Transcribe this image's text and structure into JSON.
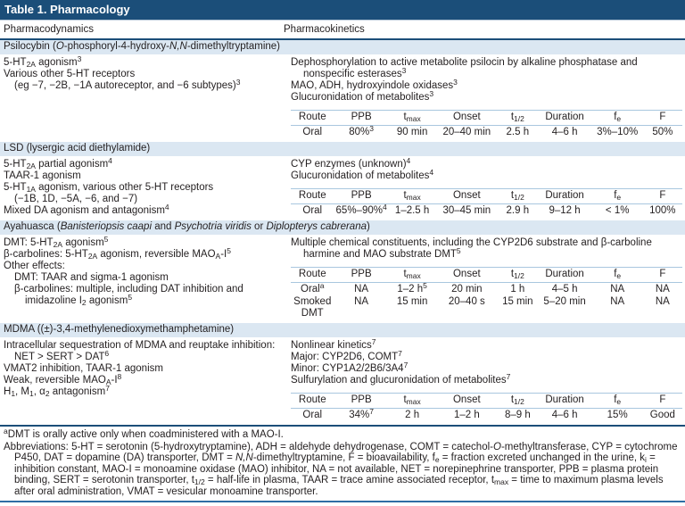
{
  "title": "Table 1. Pharmacology",
  "columns": {
    "left": "Pharmacodynamics",
    "right": "Pharmacokinetics"
  },
  "accent_colors": {
    "header_bar": "#1B4E79",
    "section_band": "#DBE7F2",
    "table_rule": "#A9C7DF",
    "bottom_rule": "#2E6DA4"
  },
  "pk_table_headers": [
    "Route",
    "PPB",
    "t<sub>max</sub>",
    "Onset",
    "t<sub>1/2</sub>",
    "Duration",
    "f<sub>e</sub>",
    "F"
  ],
  "sections": [
    {
      "id": "psilocybin",
      "band": "Psilocybin (<i>O</i>-phosphoryl-4-hydroxy-<i>N,N</i>-dimethyltryptamine)",
      "pd_lines": [
        {
          "text": "5-HT<sub>2A</sub> agonism<sup>3</sup>",
          "indent": 0
        },
        {
          "text": "Various other 5-HT receptors",
          "indent": 0
        },
        {
          "text": "(eg −7, −2B, −1A autoreceptor, and −6 subtypes)<sup>3</sup>",
          "indent": 1
        }
      ],
      "pk_lines": [
        {
          "text": "Dephosphorylation to active metabolite psilocin by alkaline phosphatase and nonspecific esterases<sup>3</sup>",
          "hang": true
        },
        {
          "text": "MAO, ADH, hydroxyindole oxidases<sup>3</sup>"
        },
        {
          "text": "Glucuronidation of metabolites<sup>3</sup>"
        }
      ],
      "pk_rows": [
        [
          "Oral",
          "80%<sup>3</sup>",
          "90 min",
          "20–40 min",
          "2.5 h",
          "4–6 h",
          "3%–10%",
          "50%"
        ]
      ]
    },
    {
      "id": "lsd",
      "band": "LSD (lysergic acid diethylamide)",
      "pd_lines": [
        {
          "text": "5-HT<sub>2A</sub> partial agonism<sup>4</sup>",
          "indent": 0
        },
        {
          "text": "TAAR-1 agonism",
          "indent": 0
        },
        {
          "text": "5-HT<sub>1A</sub> agonism, various other 5-HT receptors",
          "indent": 0
        },
        {
          "text": "(−1B, 1D, −5A, −6, and −7)",
          "indent": 1
        },
        {
          "text": "Mixed DA agonism and antagonism<sup>4</sup>",
          "indent": 0
        }
      ],
      "pk_lines": [
        {
          "text": "CYP enzymes (unknown)<sup>4</sup>"
        },
        {
          "text": "Glucuronidation of metabolites<sup>4</sup>"
        }
      ],
      "pk_rows": [
        [
          "Oral",
          "65%–90%<sup>4</sup>",
          "1–2.5 h",
          "30–45 min",
          "2.9 h",
          "9–12 h",
          "&lt; 1%",
          "100%"
        ]
      ]
    },
    {
      "id": "ayahuasca",
      "band": "Ayahuasca (<i>Banisteriopsis caapi</i> and <i>Psychotria viridis</i> or <i>Diplopterys cabrerana</i>)",
      "pd_lines": [
        {
          "text": "DMT: 5-HT<sub>2A</sub> agonism<sup>5</sup>",
          "indent": 0
        },
        {
          "text": "β-carbolines: 5-HT<sub>2A</sub> agonism, reversible MAO<sub>A</sub>-I<sup>5</sup>",
          "indent": 0
        },
        {
          "text": "Other effects:",
          "indent": 0
        },
        {
          "text": "DMT: TAAR and sigma-1 agonism",
          "indent": 1
        },
        {
          "text": "β-carbolines: multiple, including DAT inhibition and",
          "indent": 1
        },
        {
          "text": "imidazoline I<sub>2</sub> agonism<sup>5</sup>",
          "indent": 2
        }
      ],
      "pk_lines": [
        {
          "text": "Multiple chemical constituents, including the CYP2D6 substrate and β-carboline harmine and MAO substrate DMT<sup>5</sup>",
          "hang": true
        }
      ],
      "pk_rows": [
        [
          "Oral<sup>a</sup>",
          "NA",
          "1–2 h<sup>5</sup>",
          "20 min",
          "1 h",
          "4–5 h",
          "NA",
          "NA"
        ],
        [
          "Smoked DMT",
          "NA",
          "15 min",
          "20–40 s",
          "15 min",
          "5–20 min",
          "NA",
          "NA"
        ]
      ]
    },
    {
      "id": "mdma",
      "band": "MDMA ((±)-3,4-methylenedioxymethamphetamine)",
      "pd_lines": [
        {
          "text": "Intracellular sequestration of MDMA and reuptake inhibition:",
          "indent": 0
        },
        {
          "text": "NET &gt; SERT &gt; DAT<sup>6</sup>",
          "indent": 1
        },
        {
          "text": "VMAT2 inhibition, TAAR-1 agonism",
          "indent": 0
        },
        {
          "text": "Weak, reversible MAO<sub>A</sub>-I<sup>8</sup>",
          "indent": 0
        },
        {
          "text": "H<sub>1</sub>, M<sub>1</sub>, α<sub>2</sub> antagonism<sup>7</sup>",
          "indent": 0
        }
      ],
      "pk_lines": [
        {
          "text": "Nonlinear kinetics<sup>7</sup>"
        },
        {
          "text": "Major: CYP2D6, COMT<sup>7</sup>"
        },
        {
          "text": "Minor: CYP1A2/2B6/3A4<sup>7</sup>"
        },
        {
          "text": "Sulfurylation and glucuronidation of metabolites<sup>7</sup>"
        }
      ],
      "pk_rows": [
        [
          "Oral",
          "34%<sup>7</sup>",
          "2 h",
          "1–2 h",
          "8–9 h",
          "4–6 h",
          "15%",
          "Good"
        ]
      ]
    }
  ],
  "footnote": "<sup>a</sup>DMT is orally active only when coadministered with a MAO-I.",
  "abbreviations": "Abbreviations: 5-HT = serotonin (5-hydroxytryptamine), ADH = aldehyde dehydrogenase, COMT = catechol-<i>O</i>-methyltransferase, CYP = cytochrome P450, DAT = dopamine (DA) transporter, DMT = <i>N,N</i>-dimethyltryptamine, F = bioavailability, f<sub>e</sub> = fraction excreted unchanged in the urine, k<sub>i</sub> = inhibition constant, MAO-I = monoamine oxidase (MAO) inhibitor, NA = not available, NET = norepinephrine transporter, PPB = plasma protein binding, SERT = serotonin transporter, t<sub>1/2</sub> = half-life in plasma, TAAR = trace amine associated receptor, t<sub>max</sub> = time to maximum plasma levels after oral administration, VMAT = vesicular monoamine transporter."
}
